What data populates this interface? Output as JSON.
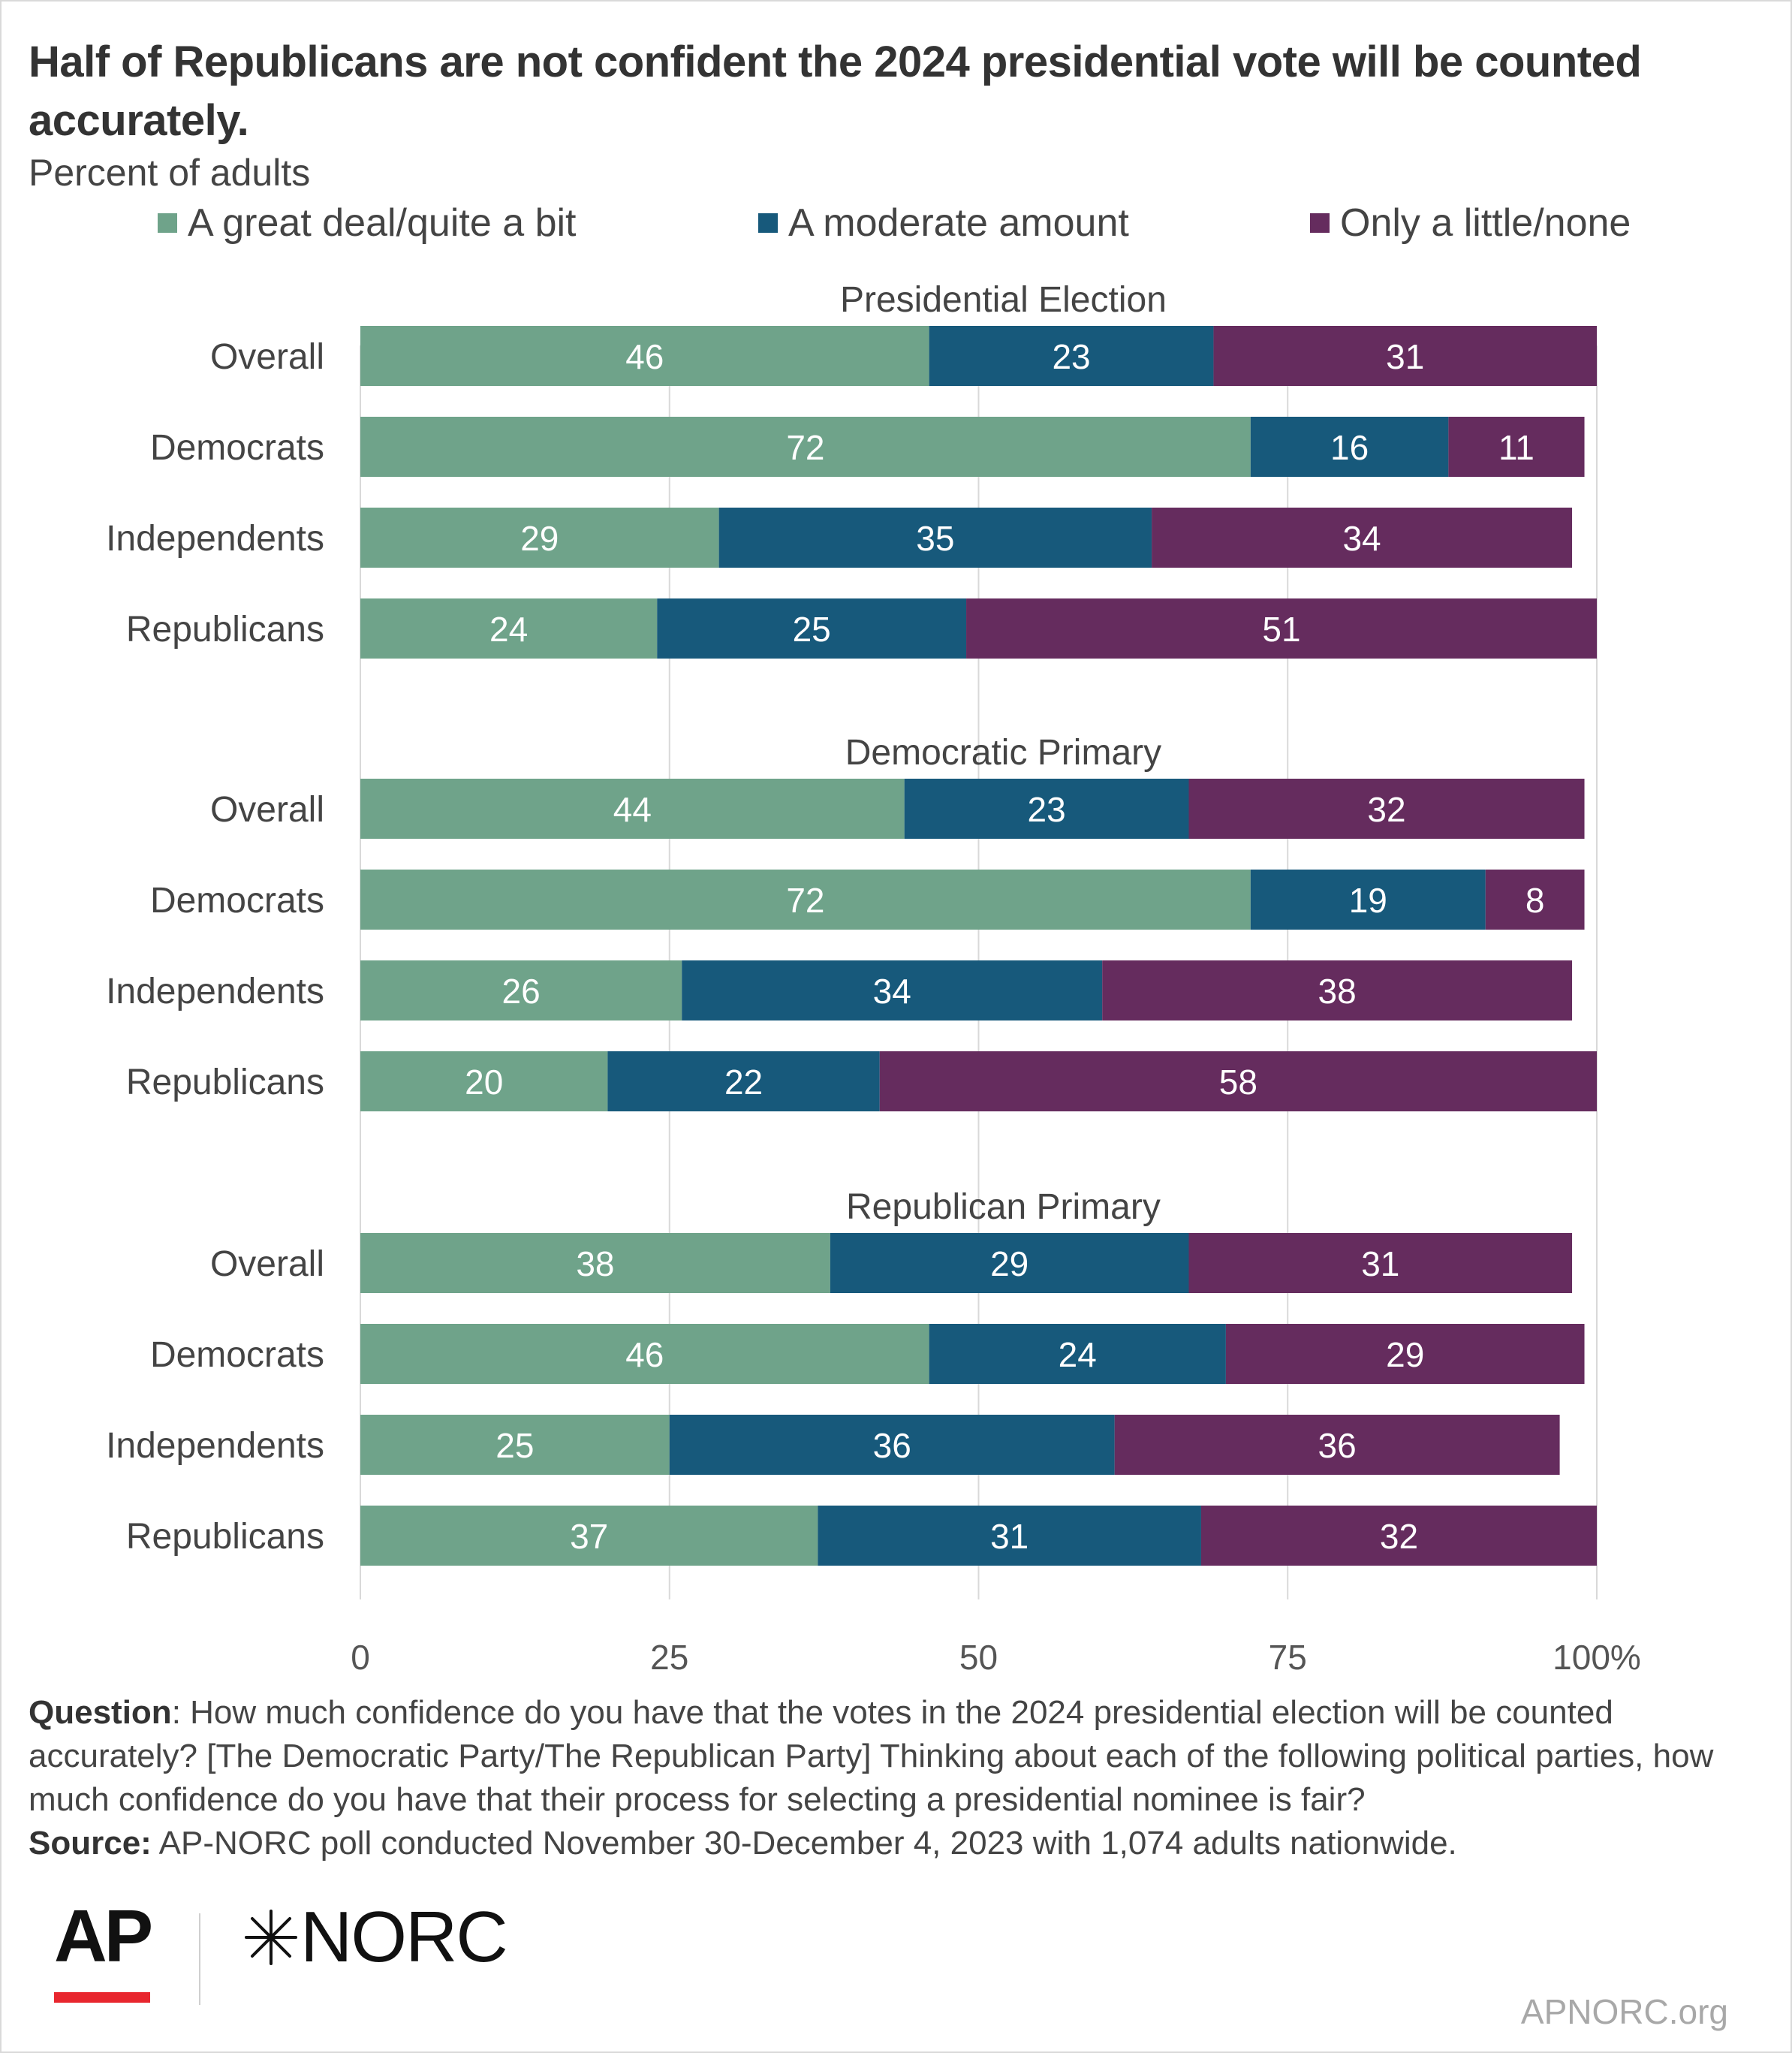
{
  "title": "Half of Republicans are not confident the 2024 presidential vote will be counted accurately.",
  "subtitle": "Percent of adults",
  "legend": [
    {
      "label": "A great deal/quite a bit",
      "color": "#6fa38a"
    },
    {
      "label": "A moderate amount",
      "color": "#17597b"
    },
    {
      "label": "Only a little/none",
      "color": "#652c5e"
    }
  ],
  "footnote": {
    "question_label": "Question",
    "question_text": ": How much confidence do you have that the votes in the 2024 presidential election will be counted accurately? [The Democratic Party/The Republican Party] Thinking about each of the following political parties, how much confidence do you have that their process for selecting a presidential nominee is fair?",
    "source_label": "Source:",
    "source_text": " AP-NORC poll conducted November 30-December 4, 2023 with 1,074 adults nationwide."
  },
  "logos": {
    "ap": "AP",
    "norc": "NORC",
    "norc_mark": "star-burst-icon"
  },
  "site": "APNORC.org",
  "chart_data": {
    "type": "bar",
    "orientation": "horizontal",
    "stacked": true,
    "xlim": [
      0,
      100
    ],
    "x_ticks": [
      {
        "value": 0,
        "label": "0"
      },
      {
        "value": 25,
        "label": "25"
      },
      {
        "value": 50,
        "label": "50"
      },
      {
        "value": 75,
        "label": "75"
      },
      {
        "value": 100,
        "label": "100%"
      }
    ],
    "grid": true,
    "legend_position": "top",
    "series": [
      {
        "name": "A great deal/quite a bit",
        "color": "#6fa38a"
      },
      {
        "name": "A moderate amount",
        "color": "#17597b"
      },
      {
        "name": "Only a little/none",
        "color": "#652c5e"
      }
    ],
    "panels": [
      {
        "title": "Presidential Election",
        "rows": [
          {
            "label": "Overall",
            "values": [
              46,
              23,
              31
            ]
          },
          {
            "label": "Democrats",
            "values": [
              72,
              16,
              11
            ]
          },
          {
            "label": "Independents",
            "values": [
              29,
              35,
              34
            ]
          },
          {
            "label": "Republicans",
            "values": [
              24,
              25,
              51
            ]
          }
        ]
      },
      {
        "title": "Democratic Primary",
        "rows": [
          {
            "label": "Overall",
            "values": [
              44,
              23,
              32
            ]
          },
          {
            "label": "Democrats",
            "values": [
              72,
              19,
              8
            ]
          },
          {
            "label": "Independents",
            "values": [
              26,
              34,
              38
            ]
          },
          {
            "label": "Republicans",
            "values": [
              20,
              22,
              58
            ]
          }
        ]
      },
      {
        "title": "Republican Primary",
        "rows": [
          {
            "label": "Overall",
            "values": [
              38,
              29,
              31
            ]
          },
          {
            "label": "Democrats",
            "values": [
              46,
              24,
              29
            ]
          },
          {
            "label": "Independents",
            "values": [
              25,
              36,
              36
            ]
          },
          {
            "label": "Republicans",
            "values": [
              37,
              31,
              32
            ]
          }
        ]
      }
    ]
  }
}
